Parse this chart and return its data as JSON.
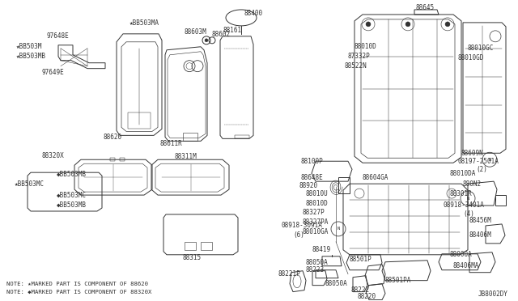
{
  "bg_color": "#ffffff",
  "line_color": "#333333",
  "fig_width": 6.4,
  "fig_height": 3.72,
  "dpi": 100,
  "diagram_id": "JB8002DY",
  "note1": "NOTE: ★MARKED PART IS COMPONENT OF 88620",
  "note2": "NOTE: ◆MARKED PART IS COMPONENT OF 88320X"
}
